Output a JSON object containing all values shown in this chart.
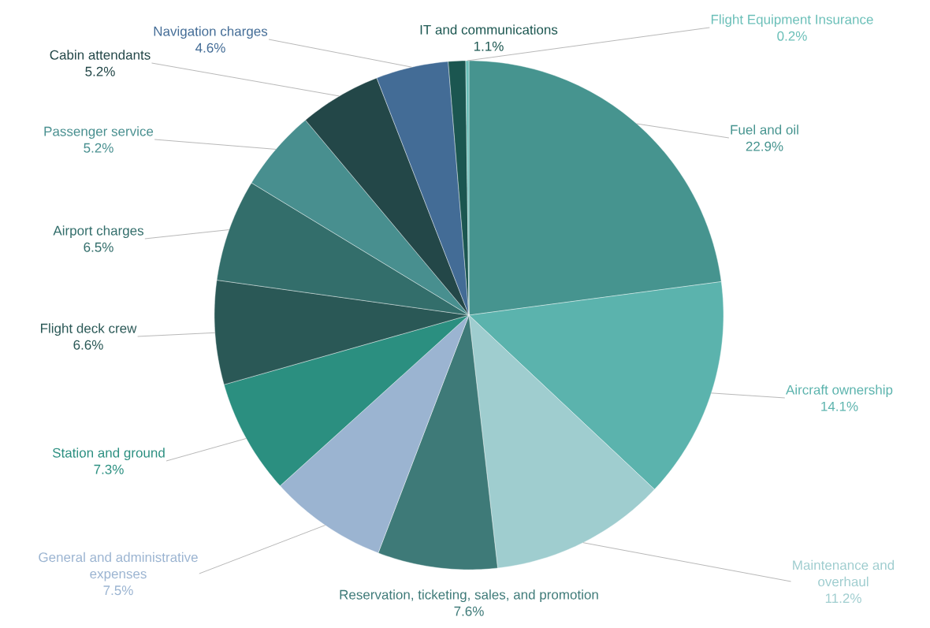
{
  "chart_data": {
    "type": "pie",
    "categories": [
      "Fuel and oil",
      "Aircraft ownership",
      "Maintenance and overhaul",
      "Reservation, ticketing, sales, and promotion",
      "General and administrative expenses",
      "Station and ground",
      "Flight deck crew",
      "Airport charges",
      "Passenger service",
      "Cabin attendants",
      "Navigation charges",
      "IT and communications",
      "Flight Equipment Insurance"
    ],
    "values": [
      22.9,
      14.1,
      11.2,
      7.6,
      7.5,
      7.3,
      6.6,
      6.5,
      5.2,
      5.2,
      4.6,
      1.1,
      0.2
    ],
    "value_labels": [
      "22.9%",
      "14.1%",
      "11.2%",
      "7.6%",
      "7.5%",
      "7.3%",
      "6.6%",
      "6.5%",
      "5.2%",
      "5.2%",
      "4.6%",
      "1.1%",
      "0.2%"
    ],
    "colors": [
      "#46948f",
      "#5bb3ad",
      "#9fcdcf",
      "#3e7a78",
      "#9bb4d1",
      "#2b8f80",
      "#2a5856",
      "#336e6b",
      "#488f8f",
      "#234748",
      "#436c96",
      "#1b5650",
      "#6abfb8"
    ]
  }
}
